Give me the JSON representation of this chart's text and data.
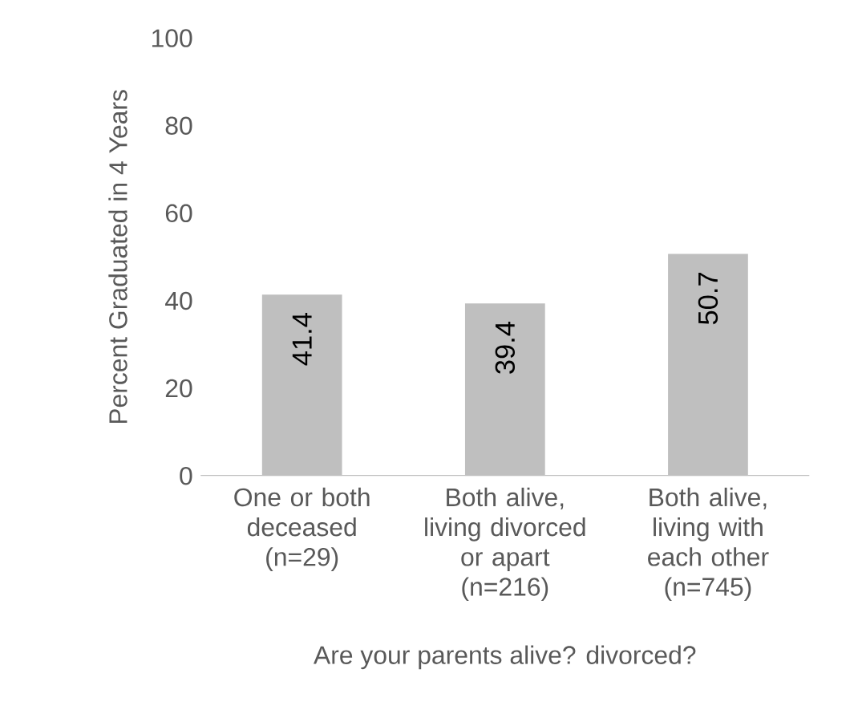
{
  "chart_data": {
    "type": "bar",
    "xlabel": "Are your parents alive? divorced?",
    "ylabel": "Percent Graduated in 4 Years",
    "categories": [
      "One or both deceased (n=29)",
      "Both alive, living divorced or apart (n=216)",
      "Both alive, living with each other (n=745)"
    ],
    "values": [
      41.4,
      39.4,
      50.7
    ],
    "color": "#bfbfbf",
    "ylim": [
      0,
      100
    ],
    "yticks": [
      0,
      20,
      40,
      60,
      80,
      100
    ],
    "grid": false,
    "data_labels": true
  }
}
